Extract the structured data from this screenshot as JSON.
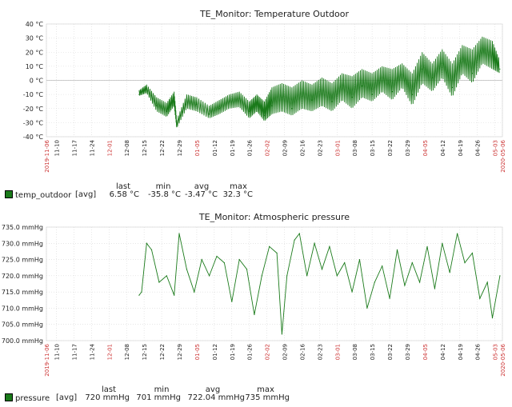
{
  "tick_labels": [
    "2019-11-06",
    "11-10",
    "11-17",
    "11-24",
    "12-01",
    "12-08",
    "12-15",
    "12-22",
    "12-29",
    "01-05",
    "01-12",
    "01-19",
    "01-26",
    "02-02",
    "02-09",
    "02-16",
    "02-23",
    "03-01",
    "03-08",
    "03-15",
    "03-22",
    "03-29",
    "04-05",
    "04-12",
    "04-19",
    "04-26",
    "05-03",
    "2020-05-06"
  ],
  "tick_red": [
    true,
    false,
    false,
    false,
    true,
    false,
    false,
    false,
    false,
    true,
    false,
    false,
    false,
    true,
    false,
    false,
    false,
    true,
    false,
    false,
    false,
    false,
    true,
    false,
    false,
    false,
    true,
    true
  ],
  "colors": {
    "series": "#1a7a1a",
    "red_label": "#cc3333",
    "grid": "#d8d8d8"
  },
  "chart_data": [
    {
      "type": "line",
      "title": "TE_Monitor: Temperature Outdoor",
      "ylim": [
        -40,
        40
      ],
      "yticks": [
        -40,
        -30,
        -20,
        -10,
        0,
        10,
        20,
        30,
        40
      ],
      "ytick_labels": [
        "-40 °C",
        "-30 °C",
        "-20 °C",
        "-10 °C",
        "0 °C",
        "10 °C",
        "20 °C",
        "30 °C",
        "40 °C"
      ],
      "x": [
        "2019-12-13",
        "2019-12-16",
        "2019-12-20",
        "2019-12-24",
        "2019-12-27",
        "2019-12-28",
        "2020-01-01",
        "2020-01-05",
        "2020-01-10",
        "2020-01-14",
        "2020-01-18",
        "2020-01-22",
        "2020-01-26",
        "2020-01-29",
        "2020-02-01",
        "2020-02-04",
        "2020-02-08",
        "2020-02-12",
        "2020-02-16",
        "2020-02-20",
        "2020-02-24",
        "2020-02-28",
        "2020-03-03",
        "2020-03-07",
        "2020-03-11",
        "2020-03-15",
        "2020-03-19",
        "2020-03-23",
        "2020-03-27",
        "2020-03-31",
        "2020-04-04",
        "2020-04-08",
        "2020-04-12",
        "2020-04-16",
        "2020-04-20",
        "2020-04-24",
        "2020-04-28",
        "2020-05-02",
        "2020-05-05"
      ],
      "series": [
        {
          "name": "temp_outdoor",
          "values": [
            -10,
            -5,
            -18,
            -22,
            -12,
            -33,
            -15,
            -17,
            -24,
            -20,
            -15,
            -13,
            -22,
            -17,
            -25,
            -18,
            -12,
            -20,
            -6,
            -14,
            -7,
            -15,
            -3,
            -12,
            -4,
            -10,
            2,
            -8,
            4,
            -10,
            8,
            2,
            12,
            -5,
            15,
            5,
            25,
            20,
            8
          ],
          "hi": [
            -7,
            -3,
            -12,
            -16,
            -8,
            -28,
            -10,
            -12,
            -18,
            -14,
            -10,
            -8,
            -15,
            -10,
            -15,
            -5,
            -2,
            -5,
            0,
            -3,
            2,
            -2,
            5,
            3,
            8,
            5,
            10,
            8,
            12,
            5,
            20,
            12,
            22,
            12,
            25,
            22,
            31,
            28,
            14
          ],
          "lo": [
            -11,
            -9,
            -22,
            -26,
            -18,
            -34,
            -20,
            -22,
            -27,
            -24,
            -20,
            -19,
            -27,
            -22,
            -29,
            -24,
            -22,
            -25,
            -20,
            -22,
            -18,
            -22,
            -14,
            -20,
            -12,
            -15,
            -8,
            -14,
            -5,
            -18,
            -2,
            -8,
            2,
            -12,
            5,
            -2,
            12,
            8,
            5
          ]
        }
      ],
      "legend": {
        "label": "temp_outdoor",
        "agg": "[avg]",
        "headers": [
          "last",
          "min",
          "avg",
          "max"
        ],
        "values": [
          "6.58 °C",
          "-35.8 °C",
          "-3.47 °C",
          "32.3 °C"
        ]
      }
    },
    {
      "type": "line",
      "title": "TE_Monitor: Atmospheric pressure",
      "ylim": [
        700,
        735
      ],
      "yticks": [
        700,
        705,
        710,
        715,
        720,
        725,
        730,
        735
      ],
      "ytick_labels": [
        "700.0 mmHg",
        "705.0 mmHg",
        "710.0 mmHg",
        "715.0 mmHg",
        "720.0 mmHg",
        "725.0 mmHg",
        "730.0 mmHg",
        "735.0 mmHg"
      ],
      "x": [
        "2019-12-13",
        "2019-12-14",
        "2019-12-16",
        "2019-12-18",
        "2019-12-21",
        "2019-12-24",
        "2019-12-27",
        "2019-12-29",
        "2020-01-01",
        "2020-01-04",
        "2020-01-07",
        "2020-01-10",
        "2020-01-13",
        "2020-01-16",
        "2020-01-19",
        "2020-01-22",
        "2020-01-25",
        "2020-01-28",
        "2020-01-31",
        "2020-02-03",
        "2020-02-06",
        "2020-02-08",
        "2020-02-10",
        "2020-02-13",
        "2020-02-15",
        "2020-02-18",
        "2020-02-21",
        "2020-02-24",
        "2020-02-27",
        "2020-03-01",
        "2020-03-04",
        "2020-03-07",
        "2020-03-10",
        "2020-03-13",
        "2020-03-16",
        "2020-03-19",
        "2020-03-22",
        "2020-03-25",
        "2020-03-28",
        "2020-03-31",
        "2020-04-03",
        "2020-04-06",
        "2020-04-09",
        "2020-04-12",
        "2020-04-15",
        "2020-04-18",
        "2020-04-21",
        "2020-04-24",
        "2020-04-27",
        "2020-04-30",
        "2020-05-02",
        "2020-05-05"
      ],
      "series": [
        {
          "name": "pressure",
          "values": [
            714,
            715,
            730,
            728,
            718,
            720,
            714,
            733,
            722,
            715,
            725,
            720,
            726,
            724,
            712,
            725,
            722,
            708,
            720,
            729,
            727,
            702,
            720,
            731,
            733,
            720,
            730,
            722,
            729,
            720,
            724,
            715,
            725,
            710,
            718,
            723,
            713,
            728,
            717,
            724,
            718,
            729,
            716,
            730,
            721,
            733,
            724,
            727,
            713,
            718,
            707,
            720
          ]
        }
      ],
      "legend": {
        "label": "pressure",
        "agg": "[avg]",
        "headers": [
          "last",
          "min",
          "avg",
          "max"
        ],
        "values": [
          "720 mmHg",
          "701 mmHg",
          "722.04 mmHg",
          "735 mmHg"
        ]
      }
    }
  ]
}
